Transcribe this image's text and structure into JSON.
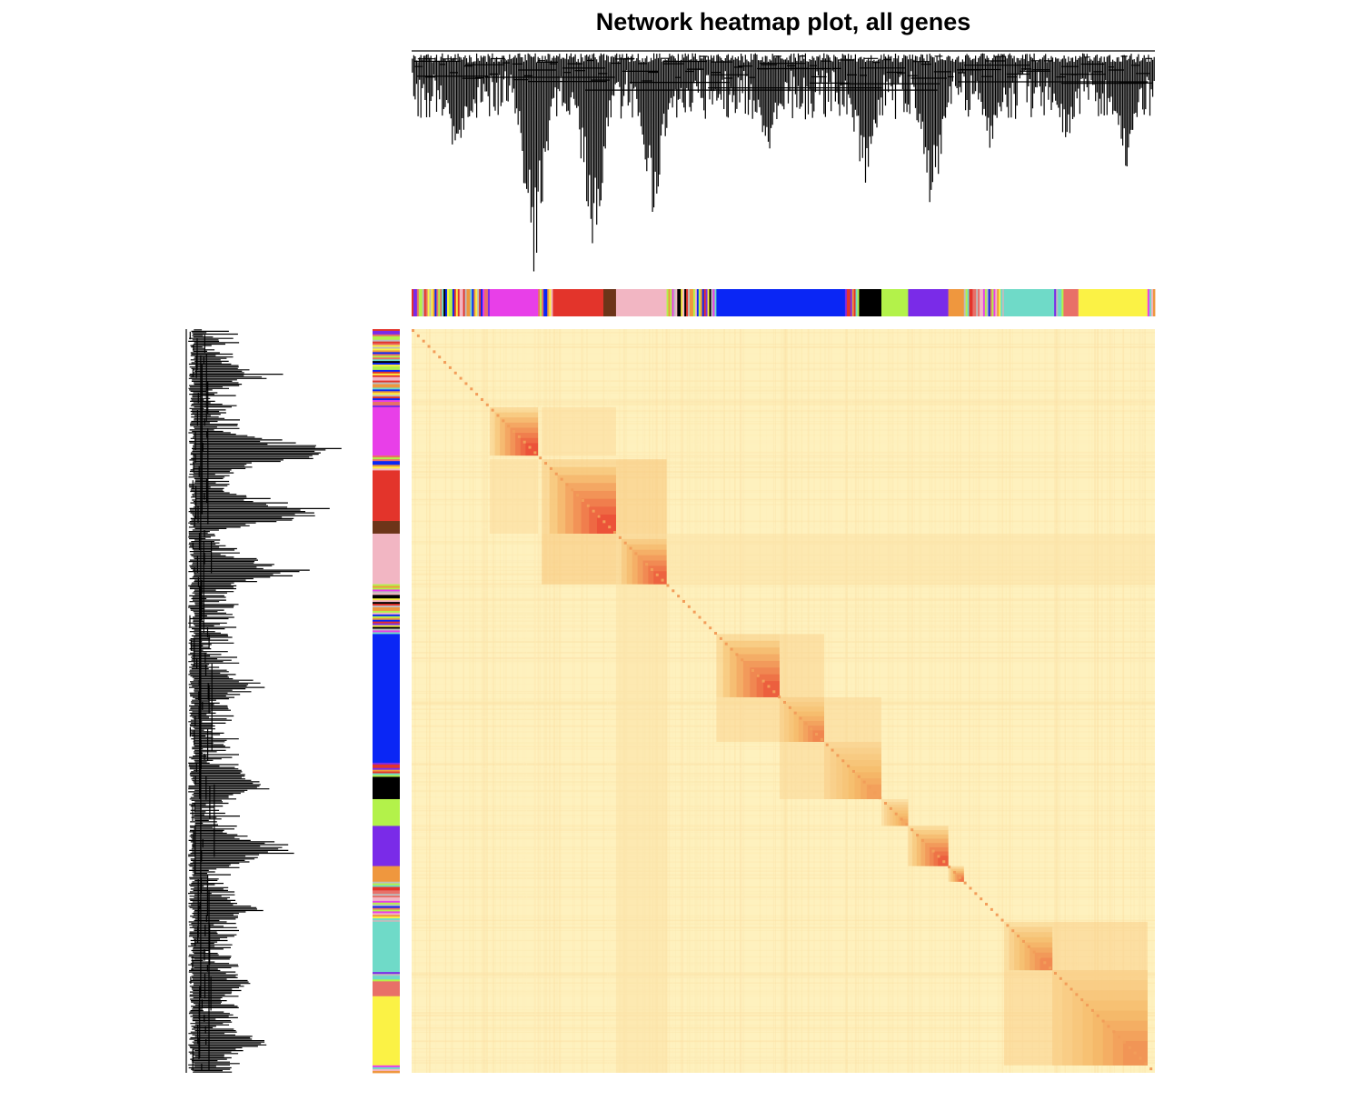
{
  "chart_data": {
    "type": "heatmap",
    "title": "Network heatmap plot, all genes",
    "xlabel": "",
    "ylabel": "",
    "legend": "none",
    "colorscale": {
      "low": "#fff6c6",
      "mid": "#f5b865",
      "high": "#e8312a"
    },
    "module_order": [
      "grey",
      "magenta",
      "red",
      "brown",
      "pink",
      "blue",
      "black",
      "greenyellow",
      "purple",
      "orange",
      "turquoise",
      "salmon",
      "yellow"
    ],
    "module_colors": {
      "grey": "#bdbdbd",
      "magenta": "#e83fe8",
      "red": "#e3342b",
      "brown": "#6d3519",
      "pink": "#f2b6c3",
      "blue": "#0a26f5",
      "black": "#000000",
      "greenyellow": "#b3f24a",
      "purple": "#7a2be8",
      "orange": "#ef973e",
      "turquoise": "#6fdac8",
      "salmon": "#e87068",
      "yellow": "#fbf245"
    },
    "module_segments": [
      {
        "module": "mixed",
        "start": 0.0,
        "end": 0.105
      },
      {
        "module": "magenta",
        "start": 0.105,
        "end": 0.17
      },
      {
        "module": "mixed",
        "start": 0.17,
        "end": 0.19
      },
      {
        "module": "red",
        "start": 0.19,
        "end": 0.258
      },
      {
        "module": "brown",
        "start": 0.258,
        "end": 0.275
      },
      {
        "module": "pink",
        "start": 0.275,
        "end": 0.343
      },
      {
        "module": "mixed",
        "start": 0.343,
        "end": 0.41
      },
      {
        "module": "blue",
        "start": 0.41,
        "end": 0.583
      },
      {
        "module": "mixed",
        "start": 0.583,
        "end": 0.602
      },
      {
        "module": "black",
        "start": 0.602,
        "end": 0.632
      },
      {
        "module": "greenyellow",
        "start": 0.632,
        "end": 0.668
      },
      {
        "module": "purple",
        "start": 0.668,
        "end": 0.722
      },
      {
        "module": "orange",
        "start": 0.722,
        "end": 0.743
      },
      {
        "module": "mixed",
        "start": 0.743,
        "end": 0.797
      },
      {
        "module": "turquoise",
        "start": 0.797,
        "end": 0.862
      },
      {
        "module": "mixed",
        "start": 0.862,
        "end": 0.877
      },
      {
        "module": "salmon",
        "start": 0.877,
        "end": 0.897
      },
      {
        "module": "yellow",
        "start": 0.897,
        "end": 0.99
      },
      {
        "module": "mixed",
        "start": 0.99,
        "end": 1.0
      }
    ],
    "blocks": [
      {
        "module": "magenta",
        "start": 0.105,
        "end": 0.17,
        "intensity": 0.85
      },
      {
        "module": "red",
        "start": 0.175,
        "end": 0.275,
        "intensity": 0.85
      },
      {
        "module": "pink",
        "start": 0.275,
        "end": 0.343,
        "intensity": 0.78
      },
      {
        "module": "blue",
        "start": 0.41,
        "end": 0.495,
        "intensity": 0.8
      },
      {
        "module": "blue",
        "start": 0.495,
        "end": 0.555,
        "intensity": 0.62
      },
      {
        "module": "black",
        "start": 0.555,
        "end": 0.632,
        "intensity": 0.5
      },
      {
        "module": "greenyellow",
        "start": 0.632,
        "end": 0.668,
        "intensity": 0.45
      },
      {
        "module": "purple",
        "start": 0.668,
        "end": 0.722,
        "intensity": 0.8
      },
      {
        "module": "orange",
        "start": 0.722,
        "end": 0.743,
        "intensity": 0.7
      },
      {
        "module": "turquoise",
        "start": 0.797,
        "end": 0.862,
        "intensity": 0.6
      },
      {
        "module": "yellow",
        "start": 0.862,
        "end": 0.99,
        "intensity": 0.55
      }
    ],
    "cross_blocks": [
      {
        "rows": [
          0.175,
          0.275
        ],
        "cols": [
          0.275,
          0.343
        ],
        "intensity": 0.5
      },
      {
        "rows": [
          0.105,
          0.17
        ],
        "cols": [
          0.175,
          0.275
        ],
        "intensity": 0.2
      },
      {
        "rows": [
          0.41,
          0.555
        ],
        "cols": [
          0.495,
          0.555
        ],
        "intensity": 0.3
      },
      {
        "rows": [
          0.495,
          0.632
        ],
        "cols": [
          0.555,
          0.632
        ],
        "intensity": 0.25
      },
      {
        "rows": [
          0.797,
          0.99
        ],
        "cols": [
          0.862,
          0.99
        ],
        "intensity": 0.35
      },
      {
        "rows": [
          0.275,
          0.343
        ],
        "cols": [
          0.343,
          1.0
        ],
        "intensity": 0.12
      }
    ],
    "dendrogram_major_branches": [
      {
        "center": 0.06,
        "depth": 0.55
      },
      {
        "center": 0.165,
        "depth": 1.0
      },
      {
        "center": 0.245,
        "depth": 0.92
      },
      {
        "center": 0.325,
        "depth": 0.75
      },
      {
        "center": 0.48,
        "depth": 0.5
      },
      {
        "center": 0.61,
        "depth": 0.62
      },
      {
        "center": 0.7,
        "depth": 0.72
      },
      {
        "center": 0.78,
        "depth": 0.45
      },
      {
        "center": 0.88,
        "depth": 0.45
      },
      {
        "center": 0.96,
        "depth": 0.55
      }
    ]
  }
}
